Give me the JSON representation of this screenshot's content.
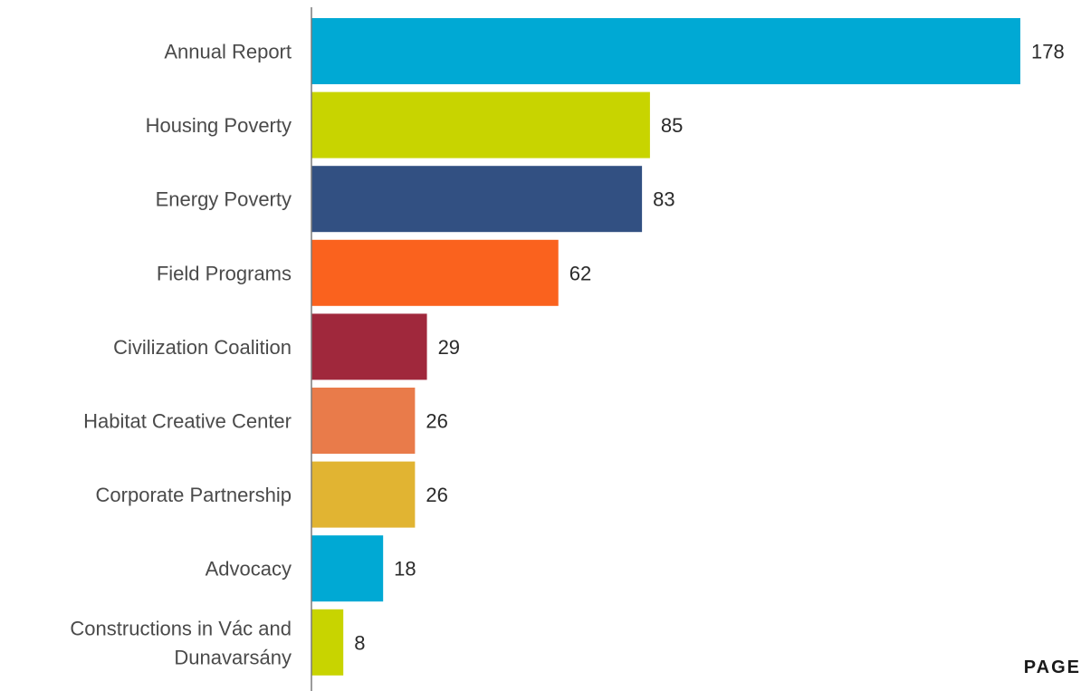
{
  "chart_data": {
    "type": "bar",
    "orientation": "horizontal",
    "categories": [
      "Annual Report",
      "Housing Poverty",
      "Energy Poverty",
      "Field Programs",
      "Civilization Coalition",
      "Habitat Creative Center",
      "Corporate Partnership",
      "Advocacy",
      "Constructions in Vác and Dunavarsány"
    ],
    "category_lines": [
      [
        "Annual Report"
      ],
      [
        "Housing Poverty"
      ],
      [
        "Energy Poverty"
      ],
      [
        "Field Programs"
      ],
      [
        "Civilization Coalition"
      ],
      [
        "Habitat Creative Center"
      ],
      [
        "Corporate Partnership"
      ],
      [
        "Advocacy"
      ],
      [
        "Constructions in Vác and",
        "Dunavarsány"
      ]
    ],
    "values": [
      178,
      85,
      83,
      62,
      29,
      26,
      26,
      18,
      8
    ],
    "colors": [
      "#00a9d4",
      "#c8d400",
      "#325082",
      "#fa621e",
      "#a0283c",
      "#e97b4a",
      "#e1b432",
      "#00a9d4",
      "#c8d400"
    ],
    "xlim": [
      0,
      180
    ],
    "title": "",
    "xlabel": "",
    "ylabel": "",
    "grid": false,
    "legend": "none"
  },
  "footer": {
    "page_label": "PAGE"
  }
}
